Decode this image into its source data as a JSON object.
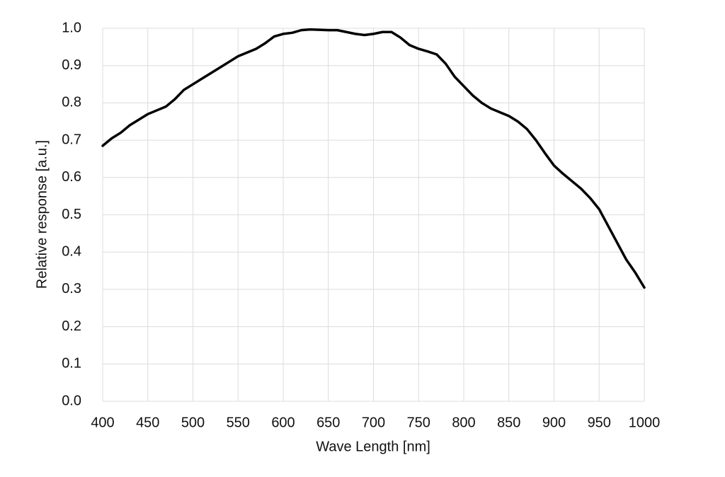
{
  "chart_data": {
    "type": "line",
    "x_label": "Wave Length [nm]",
    "y_label": "Relative response [a.u.]",
    "x": [
      400,
      410,
      420,
      430,
      440,
      450,
      460,
      470,
      480,
      490,
      500,
      510,
      520,
      530,
      540,
      550,
      560,
      570,
      580,
      590,
      600,
      610,
      620,
      630,
      640,
      650,
      660,
      670,
      680,
      690,
      700,
      710,
      720,
      730,
      740,
      750,
      760,
      770,
      780,
      790,
      800,
      810,
      820,
      830,
      840,
      850,
      860,
      870,
      880,
      890,
      900,
      910,
      920,
      930,
      940,
      950,
      960,
      970,
      980,
      990,
      1000
    ],
    "values": [
      0.685,
      0.705,
      0.72,
      0.74,
      0.755,
      0.77,
      0.78,
      0.79,
      0.81,
      0.835,
      0.85,
      0.865,
      0.88,
      0.895,
      0.91,
      0.925,
      0.935,
      0.945,
      0.96,
      0.978,
      0.985,
      0.988,
      0.995,
      0.997,
      0.996,
      0.995,
      0.995,
      0.99,
      0.985,
      0.982,
      0.985,
      0.99,
      0.99,
      0.975,
      0.955,
      0.945,
      0.938,
      0.93,
      0.905,
      0.87,
      0.845,
      0.82,
      0.8,
      0.785,
      0.775,
      0.765,
      0.75,
      0.73,
      0.7,
      0.665,
      0.632,
      0.61,
      0.59,
      0.57,
      0.545,
      0.515,
      0.47,
      0.425,
      0.38,
      0.345,
      0.305
    ],
    "color": "#000000",
    "xlim": [
      400,
      1000
    ],
    "xticks": [
      400,
      450,
      500,
      550,
      600,
      650,
      700,
      750,
      800,
      850,
      900,
      950,
      1000
    ],
    "ylim": [
      0,
      1
    ],
    "yticks": [
      {
        "value": 0,
        "label": "0.0"
      },
      0.1,
      0.2,
      0.3,
      0.4,
      0.5,
      0.6,
      0.7,
      0.8,
      0.9,
      {
        "value": 1,
        "label": "1.0"
      }
    ],
    "grid": true
  }
}
